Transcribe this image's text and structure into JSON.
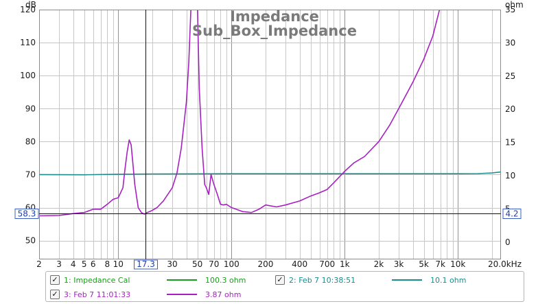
{
  "chart_data": {
    "type": "line",
    "title": "Impedance",
    "subtitle": "Sub_Box_Impedance",
    "x_scale": "log",
    "xlim": [
      2,
      24000
    ],
    "x_tick_labels": [
      {
        "v": 2,
        "t": "2"
      },
      {
        "v": 3,
        "t": "3"
      },
      {
        "v": 4,
        "t": "4"
      },
      {
        "v": 5,
        "t": "5"
      },
      {
        "v": 6,
        "t": "6"
      },
      {
        "v": 8,
        "t": "8"
      },
      {
        "v": 10,
        "t": "10"
      },
      {
        "v": 30,
        "t": "30"
      },
      {
        "v": 50,
        "t": "50"
      },
      {
        "v": 70,
        "t": "70"
      },
      {
        "v": 100,
        "t": "100"
      },
      {
        "v": 200,
        "t": "200"
      },
      {
        "v": 400,
        "t": "400"
      },
      {
        "v": 700,
        "t": "700"
      },
      {
        "v": 1000,
        "t": "1k"
      },
      {
        "v": 2000,
        "t": "2k"
      },
      {
        "v": 3000,
        "t": "3k"
      },
      {
        "v": 5000,
        "t": "5k"
      },
      {
        "v": 7000,
        "t": "7k"
      },
      {
        "v": 10000,
        "t": "10k"
      }
    ],
    "x_end_label": "20.0kHz",
    "left_axis": {
      "unit": "dB",
      "ylim": [
        44.3,
        120
      ],
      "ticks": [
        50,
        60,
        70,
        80,
        90,
        100,
        110,
        120
      ]
    },
    "right_axis": {
      "unit": "ohm",
      "ylim": [
        -2.6,
        35
      ],
      "ticks": [
        0,
        5,
        10,
        15,
        20,
        25,
        30,
        35
      ]
    },
    "grid": true,
    "cursor": {
      "x": 17.3,
      "x_label": "17.3",
      "left_value": "58.3",
      "right_value": "4.2"
    },
    "series": [
      {
        "name": "1: Impedance Cal",
        "axis": "left",
        "color": "#1a9a1a",
        "legend_value": "100.3 ohm",
        "x": [],
        "y": []
      },
      {
        "name": "2: Feb 7 10:38:51",
        "axis": "left",
        "color": "#198c8c",
        "legend_value": "10.1 ohm",
        "x": [
          2,
          5,
          10,
          20,
          100,
          1000,
          10000,
          15000,
          20000,
          24000
        ],
        "y": [
          70.0,
          69.95,
          70.1,
          70.2,
          70.25,
          70.25,
          70.25,
          70.3,
          70.5,
          70.8
        ]
      },
      {
        "name": "3: Feb 7 11:01:33",
        "axis": "left",
        "color": "#a61fc1",
        "legend_value": "3.87 ohm",
        "x": [
          2,
          3,
          4,
          5,
          6,
          7,
          8,
          9,
          10,
          11,
          11.5,
          12,
          12.5,
          13,
          13.5,
          14,
          15,
          16,
          17,
          18,
          19,
          20,
          22,
          25,
          30,
          33,
          36,
          40,
          42,
          44,
          46,
          48,
          50,
          52,
          55,
          58,
          60,
          63,
          66,
          70,
          75,
          80,
          85,
          90,
          100,
          110,
          125,
          150,
          175,
          200,
          250,
          300,
          400,
          500,
          600,
          700,
          800,
          1000,
          1200,
          1500,
          2000,
          2500,
          3000,
          4000,
          5000,
          6000,
          7000
        ],
        "y": [
          57.5,
          57.6,
          58.2,
          58.5,
          59.5,
          59.5,
          61,
          62.5,
          63,
          66,
          72,
          77,
          80.5,
          79,
          73,
          67,
          60,
          58.5,
          58,
          58.5,
          58.8,
          59.2,
          60,
          62,
          66,
          70.5,
          78,
          92,
          104,
          122,
          122,
          122,
          122,
          96,
          78,
          67,
          66,
          64,
          70,
          67,
          64,
          61,
          60.8,
          61,
          60,
          59.5,
          58.8,
          58.5,
          59.5,
          60.8,
          60.2,
          60.8,
          62,
          63.5,
          64.5,
          65.5,
          67.5,
          71,
          73.5,
          75.5,
          80,
          85,
          90,
          98,
          105,
          112,
          121
        ]
      }
    ]
  }
}
